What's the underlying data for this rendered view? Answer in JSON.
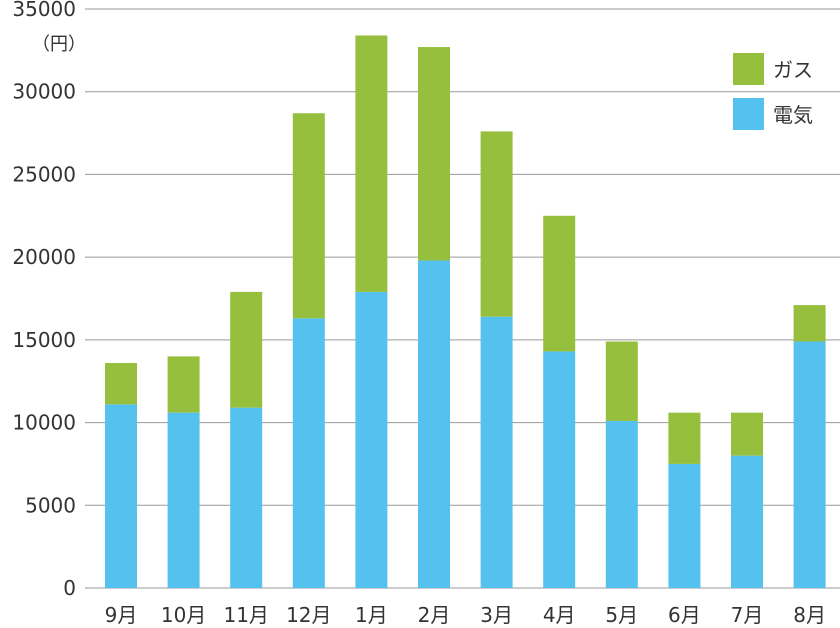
{
  "chart_data": {
    "type": "bar",
    "stacked": true,
    "title": "",
    "xlabel": "",
    "ylabel": "",
    "unit_label": "（円）",
    "categories": [
      "9月",
      "10月",
      "11月",
      "12月",
      "1月",
      "2月",
      "3月",
      "4月",
      "5月",
      "6月",
      "7月",
      "8月"
    ],
    "series": [
      {
        "name": "電気",
        "color": "#55c1ee",
        "values": [
          11100,
          10600,
          10900,
          16300,
          17900,
          19800,
          16400,
          14300,
          10100,
          7500,
          8000,
          14900
        ]
      },
      {
        "name": "ガス",
        "color": "#96bf3d",
        "values": [
          2500,
          3400,
          7000,
          12400,
          15500,
          12900,
          11200,
          8200,
          4800,
          3100,
          2600,
          2200
        ]
      }
    ],
    "ylim": [
      0,
      35000
    ],
    "yticks": [
      0,
      5000,
      10000,
      15000,
      20000,
      25000,
      30000,
      35000
    ],
    "grid": true,
    "legend_position": "top-right",
    "legend": [
      {
        "name": "ガス",
        "color": "#96bf3d"
      },
      {
        "name": "電気",
        "color": "#55c1ee"
      }
    ]
  }
}
